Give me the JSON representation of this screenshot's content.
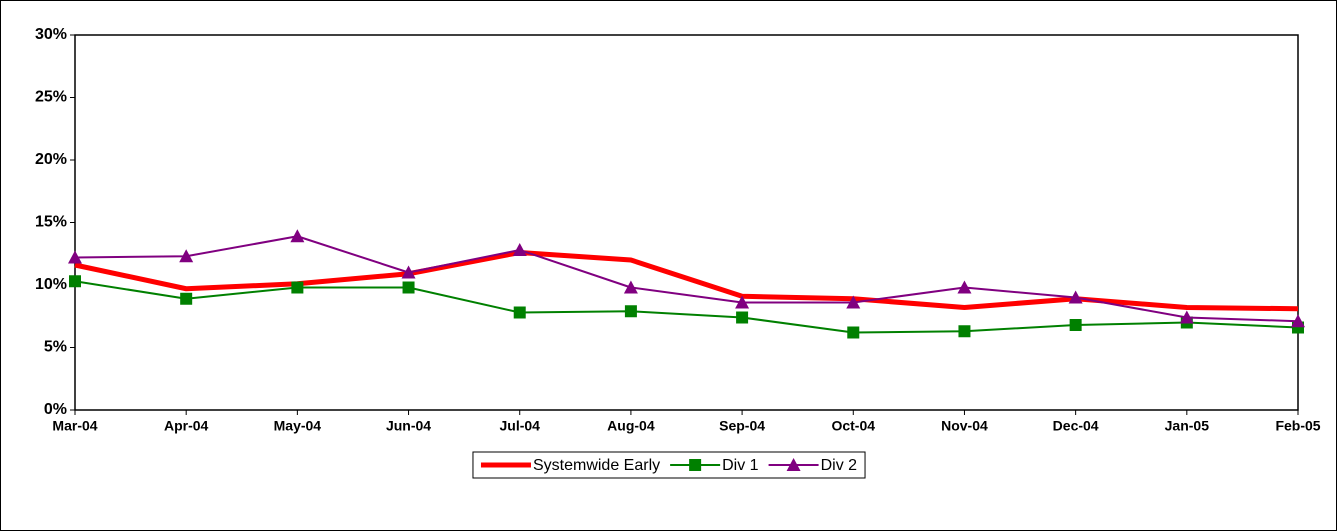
{
  "chart_data": {
    "type": "line",
    "categories": [
      "Mar-04",
      "Apr-04",
      "May-04",
      "Jun-04",
      "Jul-04",
      "Aug-04",
      "Sep-04",
      "Oct-04",
      "Nov-04",
      "Dec-04",
      "Jan-05",
      "Feb-05"
    ],
    "series": [
      {
        "name": "Systemwide Early",
        "color": "#ff0000",
        "marker": "none",
        "values": [
          11.6,
          9.7,
          10.1,
          10.9,
          12.6,
          12.0,
          9.1,
          8.9,
          8.2,
          8.9,
          8.2,
          8.1
        ]
      },
      {
        "name": "Div 1",
        "color": "#008000",
        "marker": "square",
        "values": [
          10.3,
          8.9,
          9.8,
          9.8,
          7.8,
          7.9,
          7.4,
          6.2,
          6.3,
          6.8,
          7.0,
          6.6
        ]
      },
      {
        "name": "Div 2",
        "color": "#800080",
        "marker": "triangle",
        "values": [
          12.2,
          12.3,
          13.9,
          11.0,
          12.8,
          9.8,
          8.6,
          8.6,
          9.8,
          9.0,
          7.4,
          7.1
        ]
      }
    ],
    "ylim": [
      0,
      30
    ],
    "yticks": [
      {
        "value": 0,
        "label": "0%"
      },
      {
        "value": 5,
        "label": "5%"
      },
      {
        "value": 10,
        "label": "10%"
      },
      {
        "value": 15,
        "label": "15%"
      },
      {
        "value": 20,
        "label": "20%"
      },
      {
        "value": 25,
        "label": "25%"
      },
      {
        "value": 30,
        "label": "30%"
      }
    ],
    "grid": false,
    "legend": "bottom"
  }
}
